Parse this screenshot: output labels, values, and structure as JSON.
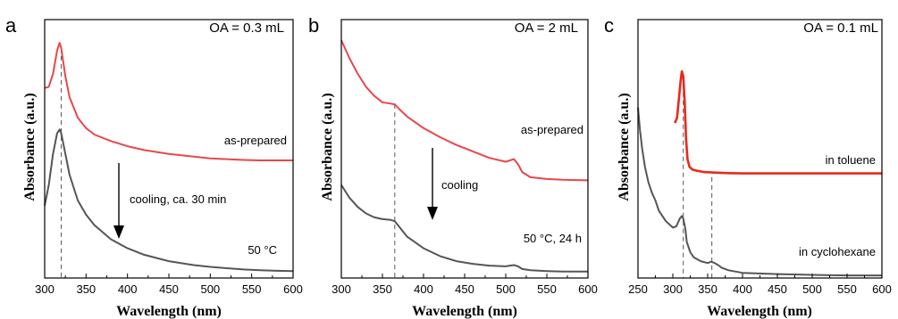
{
  "chart_data": [
    {
      "type": "line",
      "panel_label": "a",
      "title": "OA = 0.3 mL",
      "xlabel": "Wavelength (nm)",
      "ylabel": "Absorbance (a.u.)",
      "xlim": [
        300,
        600
      ],
      "ylim": [
        0,
        1
      ],
      "xticks": [
        300,
        350,
        400,
        450,
        500,
        550,
        600
      ],
      "y_tick_labels": false,
      "series": [
        {
          "name": "as-prepared",
          "color": "#e8474b",
          "x": [
            300,
            305,
            310,
            315,
            318,
            320,
            325,
            330,
            340,
            350,
            360,
            380,
            400,
            420,
            450,
            480,
            500,
            520,
            540,
            560,
            580,
            600
          ],
          "y": [
            0.735,
            0.74,
            0.79,
            0.88,
            0.91,
            0.89,
            0.78,
            0.7,
            0.62,
            0.58,
            0.555,
            0.53,
            0.51,
            0.495,
            0.48,
            0.47,
            0.463,
            0.46,
            0.457,
            0.455,
            0.455,
            0.455
          ]
        },
        {
          "name": "50 °C",
          "color": "#555555",
          "x": [
            300,
            305,
            310,
            315,
            318,
            320,
            325,
            330,
            340,
            350,
            360,
            380,
            400,
            420,
            450,
            480,
            500,
            520,
            540,
            560,
            580,
            600
          ],
          "y": [
            0.28,
            0.36,
            0.48,
            0.56,
            0.575,
            0.56,
            0.48,
            0.4,
            0.3,
            0.245,
            0.205,
            0.15,
            0.115,
            0.09,
            0.065,
            0.05,
            0.043,
            0.038,
            0.033,
            0.03,
            0.028,
            0.027
          ]
        }
      ],
      "dashed_x": [
        320
      ],
      "annotations": [
        "as-prepared",
        "cooling, ca. 30 min",
        "50 °C"
      ]
    },
    {
      "type": "line",
      "panel_label": "b",
      "title": "OA = 2 mL",
      "xlabel": "Wavelength (nm)",
      "ylabel": "Absorbance (a.u.)",
      "xlim": [
        300,
        600
      ],
      "ylim": [
        0,
        1
      ],
      "xticks": [
        300,
        350,
        400,
        450,
        500,
        550,
        600
      ],
      "y_tick_labels": false,
      "series": [
        {
          "name": "as-prepared",
          "color": "#e8474b",
          "x": [
            300,
            310,
            320,
            330,
            340,
            350,
            360,
            365,
            370,
            380,
            400,
            420,
            440,
            460,
            480,
            500,
            505,
            510,
            515,
            520,
            530,
            550,
            570,
            600
          ],
          "y": [
            0.92,
            0.85,
            0.79,
            0.74,
            0.705,
            0.68,
            0.675,
            0.672,
            0.655,
            0.625,
            0.58,
            0.545,
            0.515,
            0.49,
            0.465,
            0.45,
            0.455,
            0.46,
            0.44,
            0.41,
            0.39,
            0.383,
            0.38,
            0.378
          ]
        },
        {
          "name": "50 °C, 24 h",
          "color": "#555555",
          "x": [
            300,
            310,
            320,
            330,
            340,
            350,
            360,
            365,
            370,
            380,
            400,
            420,
            440,
            460,
            480,
            500,
            505,
            510,
            515,
            520,
            530,
            550,
            570,
            600
          ],
          "y": [
            0.36,
            0.31,
            0.275,
            0.25,
            0.235,
            0.228,
            0.225,
            0.22,
            0.2,
            0.16,
            0.115,
            0.085,
            0.065,
            0.055,
            0.048,
            0.045,
            0.048,
            0.05,
            0.045,
            0.035,
            0.03,
            0.027,
            0.025,
            0.025
          ]
        }
      ],
      "dashed_x": [
        365
      ],
      "annotations": [
        "as-prepared",
        "cooling",
        "50 °C, 24 h"
      ]
    },
    {
      "type": "line",
      "panel_label": "c",
      "title": "OA = 0.1 mL",
      "xlabel": "Wavelength (nm)",
      "ylabel": "Absorbance (a.u.)",
      "xlim": [
        250,
        600
      ],
      "ylim": [
        0,
        1
      ],
      "xticks": [
        250,
        300,
        350,
        400,
        450,
        500,
        550,
        600
      ],
      "y_tick_labels": false,
      "series": [
        {
          "name": "in toluene",
          "color": "#e8291c",
          "x": [
            303,
            306,
            309,
            311,
            313,
            315,
            317,
            319,
            321,
            324,
            328,
            335,
            345,
            360,
            380,
            400,
            450,
            500,
            550,
            600
          ],
          "y": [
            0.6,
            0.62,
            0.7,
            0.76,
            0.8,
            0.78,
            0.68,
            0.54,
            0.46,
            0.43,
            0.42,
            0.415,
            0.41,
            0.408,
            0.406,
            0.405,
            0.405,
            0.405,
            0.405,
            0.405
          ]
        },
        {
          "name": "in cyclohexane",
          "color": "#555555",
          "x": [
            250,
            253,
            256,
            260,
            265,
            270,
            275,
            280,
            290,
            300,
            305,
            310,
            313,
            315,
            318,
            320,
            325,
            330,
            340,
            350,
            355,
            360,
            365,
            370,
            380,
            400,
            450,
            500,
            550,
            600
          ],
          "y": [
            0.66,
            0.57,
            0.5,
            0.43,
            0.37,
            0.33,
            0.3,
            0.26,
            0.22,
            0.195,
            0.2,
            0.23,
            0.24,
            0.23,
            0.19,
            0.14,
            0.1,
            0.08,
            0.065,
            0.058,
            0.063,
            0.058,
            0.05,
            0.04,
            0.03,
            0.02,
            0.015,
            0.012,
            0.01,
            0.01
          ]
        }
      ],
      "dashed_x": [
        315,
        356
      ],
      "annotations": [
        "in toluene",
        "in cyclohexane"
      ]
    }
  ]
}
